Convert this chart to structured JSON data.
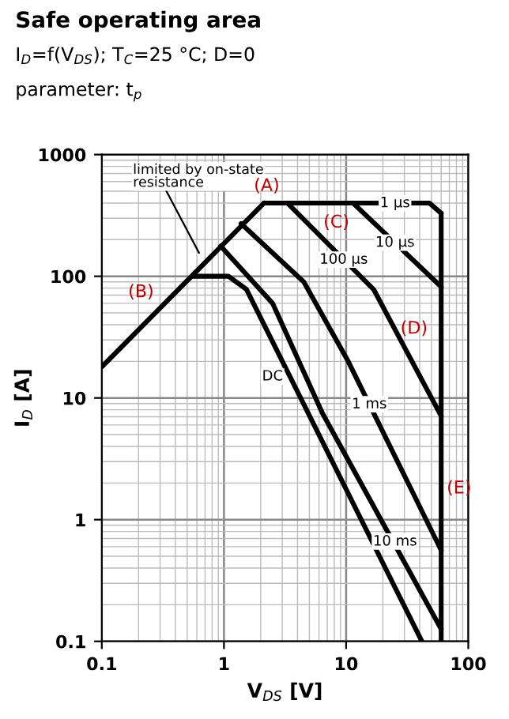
{
  "chart_data": {
    "type": "line",
    "title": "Safe operating area",
    "subtitle": "I$_{D}$=f(V$_{DS}$); T$_{C}$=25 °C; D=0",
    "xlabel": "V$_{DS}$ [V]",
    "ylabel": "I$_{D}$ [A]",
    "log": "xy",
    "xlim": [
      0.1,
      100
    ],
    "ylim": [
      0.1,
      1000
    ],
    "xticks": [
      0.1,
      1,
      10,
      100
    ],
    "yticks": [
      0.1,
      1,
      10,
      100,
      1000
    ],
    "grid": true,
    "legend": false,
    "marker": "none",
    "line_style": "solid",
    "series": [
      {
        "color": "#000000",
        "x": [
          0.1,
          2.13
        ],
        "values": [
          18,
          400
        ]
      },
      {
        "name": "1 µs",
        "color": "#000000",
        "x": [
          2.13,
          48,
          60
        ],
        "values": [
          400,
          400,
          330
        ]
      },
      {
        "name": "10 µs",
        "color": "#000000",
        "x": [
          11.4,
          60
        ],
        "values": [
          400,
          82
        ]
      },
      {
        "name": "100 µs",
        "color": "#000000",
        "x": [
          3.3,
          16.8,
          60
        ],
        "values": [
          400,
          78,
          7.1
        ]
      },
      {
        "name": "1 ms",
        "color": "#000000",
        "x": [
          1.38,
          4.5,
          10.4,
          60
        ],
        "values": [
          271,
          90,
          20,
          0.56
        ]
      },
      {
        "name": "10 ms",
        "color": "#000000",
        "x": [
          0.94,
          2.5,
          6.4,
          60
        ],
        "values": [
          177,
          60,
          7.5,
          0.126
        ]
      },
      {
        "name": "DC",
        "color": "#000000",
        "x": [
          0.56,
          1.09,
          1.53,
          3.3,
          41.7
        ],
        "values": [
          100,
          100,
          78,
          16.6,
          0.1
        ]
      },
      {
        "color": "#000000",
        "x": [
          60,
          60
        ],
        "values": [
          330,
          0.1
        ]
      }
    ],
    "annotations": [
      "parameter: t$_{p}$",
      "limited by on-state resistance",
      "(A)",
      "(B)",
      "(C)",
      "(D)",
      "(E)"
    ]
  }
}
